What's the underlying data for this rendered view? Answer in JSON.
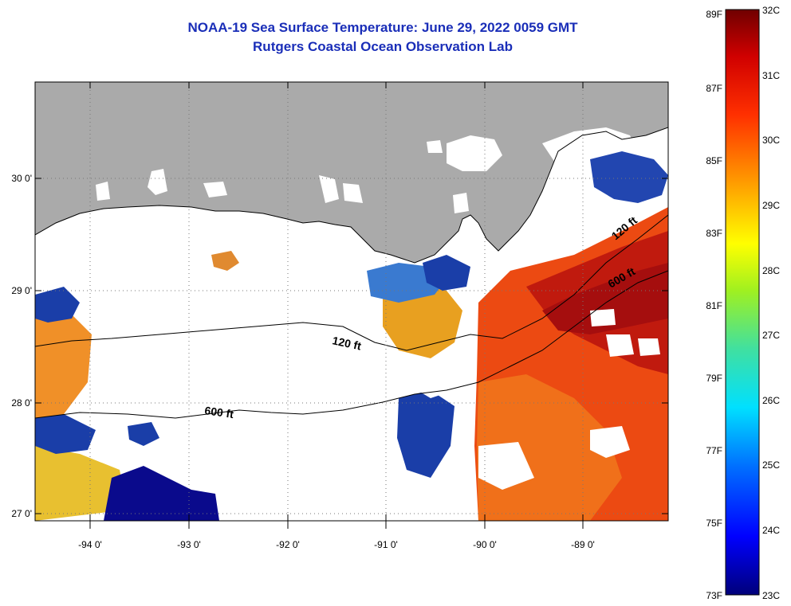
{
  "titles": {
    "line1": "NOAA-19 Sea Surface Temperature:  June 29, 2022 0059 GMT",
    "line2": "Rutgers Coastal Ocean Observation Lab"
  },
  "map": {
    "lon_labels": [
      "-94 0'",
      "-93 0'",
      "-92 0'",
      "-91 0'",
      "-90 0'",
      "-89 0'"
    ],
    "lat_labels": [
      "30 0'",
      "29 0'",
      "28 0'",
      "27 0'"
    ],
    "isobath_labels": [
      "120 ft",
      "600 ft",
      "120 ft",
      "600 ft"
    ],
    "colors": {
      "land": "#aaaaaa",
      "cloud": "#ffffff",
      "warm": "#e0300a",
      "hot": "#b50c0c",
      "mid": "#f08a18",
      "cool": "#1a3ea8",
      "cold": "#0a0a8c"
    }
  },
  "colorbar": {
    "fahrenheit_labels": [
      "89F",
      "87F",
      "85F",
      "83F",
      "81F",
      "79F",
      "77F",
      "75F",
      "73F"
    ],
    "celsius_labels": [
      "32C",
      "31C",
      "30C",
      "29C",
      "28C",
      "27C",
      "26C",
      "25C",
      "24C",
      "23C"
    ],
    "range_c": [
      23,
      32
    ],
    "range_f": [
      73,
      89
    ]
  }
}
